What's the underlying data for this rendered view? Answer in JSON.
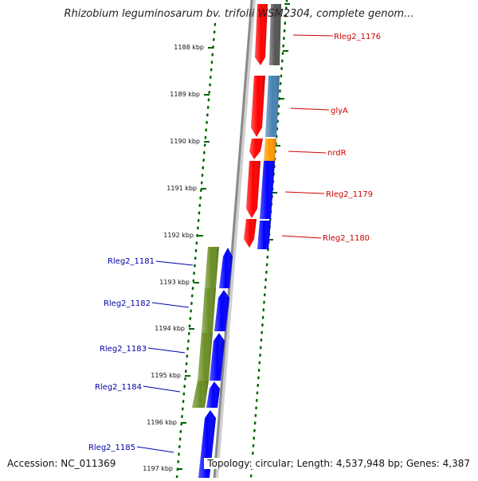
{
  "title": "Rhizobium leguminosarum bv. trifolii WSM2304, complete genom...",
  "footer": {
    "accession": "Accession: NC_011369",
    "summary": "Topology: circular; Length: 4,537,948 bp; Genes: 4,387"
  },
  "ruler": {
    "ticks": [
      "1188 kbp",
      "1189 kbp",
      "1190 kbp",
      "1191 kbp",
      "1192 kbp",
      "1193 kbp",
      "1194 kbp",
      "1195 kbp",
      "1196 kbp",
      "1197 kbp"
    ]
  },
  "colors": {
    "red": "#ff0000",
    "blue": "#0000ff",
    "green": "#6b8e23",
    "steelblue": "#4682b4",
    "orange": "#ff9900",
    "gray": "#555555",
    "label_red": "#cc0000",
    "label_blue": "#0000aa",
    "tick": "#006400"
  },
  "labels_right": [
    {
      "id": "rleg2-1176",
      "text": "Rleg2_1176"
    },
    {
      "id": "glya",
      "text": "glyA"
    },
    {
      "id": "nrdr",
      "text": "nrdR"
    },
    {
      "id": "rleg2-1179",
      "text": "Rleg2_1179"
    },
    {
      "id": "rleg2-1180",
      "text": "Rleg2_1180"
    }
  ],
  "labels_left": [
    {
      "id": "rleg2-1181",
      "text": "Rleg2_1181"
    },
    {
      "id": "rleg2-1182",
      "text": "Rleg2_1182"
    },
    {
      "id": "rleg2-1183",
      "text": "Rleg2_1183"
    },
    {
      "id": "rleg2-1184",
      "text": "Rleg2_1184"
    },
    {
      "id": "rleg2-1185",
      "text": "Rleg2_1185"
    }
  ]
}
